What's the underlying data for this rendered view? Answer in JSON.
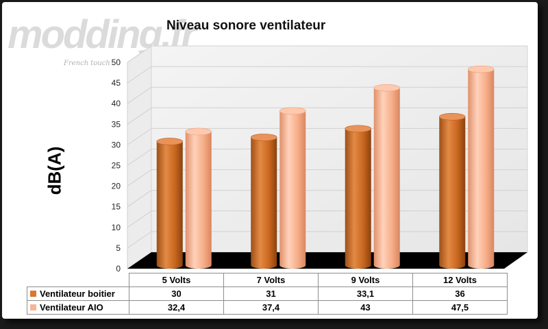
{
  "watermark": {
    "logo": "modding.fr",
    "tagline": "French touch"
  },
  "chart_data": {
    "type": "bar",
    "title": "Niveau sonore ventilateur",
    "ylabel": "dB(A)",
    "xlabel": "",
    "ylim": [
      0,
      50
    ],
    "yticks": [
      0,
      5,
      10,
      15,
      20,
      25,
      30,
      35,
      40,
      45,
      50
    ],
    "grid": true,
    "legend_placement": "data-table",
    "categories": [
      "5 Volts",
      "7 Volts",
      "9 Volts",
      "12 Volts"
    ],
    "series": [
      {
        "name": "Ventilateur boitier",
        "values": [
          30,
          31,
          33.1,
          36
        ],
        "display": [
          "30",
          "31",
          "33,1",
          "36"
        ],
        "color": "#d9782e"
      },
      {
        "name": "Ventilateur AIO",
        "values": [
          32.4,
          37.4,
          43,
          47.5
        ],
        "display": [
          "32,4",
          "37,4",
          "43",
          "47,5"
        ],
        "color": "#f7b594"
      }
    ]
  }
}
